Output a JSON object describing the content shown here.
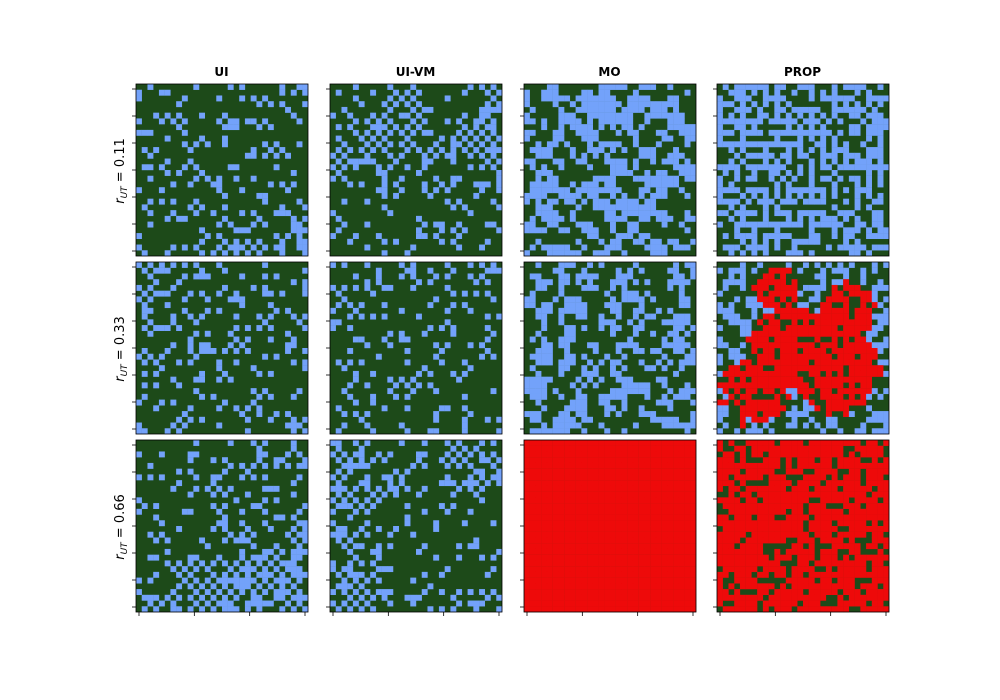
{
  "chart_data": {
    "type": "heatmap",
    "columns": [
      "UI",
      "UI-VM",
      "MO",
      "PROP"
    ],
    "rows": [
      {
        "var": "r",
        "sub": "UT",
        "value": "0.11"
      },
      {
        "var": "r",
        "sub": "UT",
        "value": "0.33"
      },
      {
        "var": "r",
        "sub": "UT",
        "value": "0.66"
      }
    ],
    "grid_size": 30,
    "state_colors": {
      "0": "#1d4a19",
      "1": "#73a2fa",
      "2": "#ee0a0a"
    },
    "state_meaning_note_visible": false,
    "panels": [
      {
        "row": 0,
        "col": 0,
        "pattern": "clustered",
        "fractions": {
          "1": 0.45,
          "2": 0.0
        }
      },
      {
        "row": 0,
        "col": 1,
        "pattern": "clustered",
        "fractions": {
          "1": 0.4,
          "2": 0.0
        }
      },
      {
        "row": 0,
        "col": 2,
        "pattern": "mixed",
        "fractions": {
          "1": 0.5,
          "2": 0.0
        }
      },
      {
        "row": 0,
        "col": 3,
        "pattern": "maze",
        "fractions": {
          "1": 0.5,
          "2": 0.0
        }
      },
      {
        "row": 1,
        "col": 0,
        "pattern": "clustered",
        "fractions": {
          "1": 0.35,
          "2": 0.0
        }
      },
      {
        "row": 1,
        "col": 1,
        "pattern": "clustered",
        "fractions": {
          "1": 0.35,
          "2": 0.0
        }
      },
      {
        "row": 1,
        "col": 2,
        "pattern": "mixed",
        "fractions": {
          "1": 0.45,
          "2": 0.0
        }
      },
      {
        "row": 1,
        "col": 3,
        "pattern": "red-blob",
        "fractions": {
          "1": 0.2,
          "2": 0.55
        }
      },
      {
        "row": 2,
        "col": 0,
        "pattern": "clustered",
        "fractions": {
          "1": 0.45,
          "2": 0.0
        }
      },
      {
        "row": 2,
        "col": 1,
        "pattern": "clustered",
        "fractions": {
          "1": 0.35,
          "2": 0.0
        }
      },
      {
        "row": 2,
        "col": 2,
        "pattern": "solid",
        "fractions": {
          "1": 0.0,
          "2": 1.0
        }
      },
      {
        "row": 2,
        "col": 3,
        "pattern": "red-dominant",
        "fractions": {
          "1": 0.0,
          "2": 0.78
        }
      }
    ],
    "xticks_per_panel": 4,
    "yticks_per_panel": 7,
    "tick_labels_visible": false
  }
}
